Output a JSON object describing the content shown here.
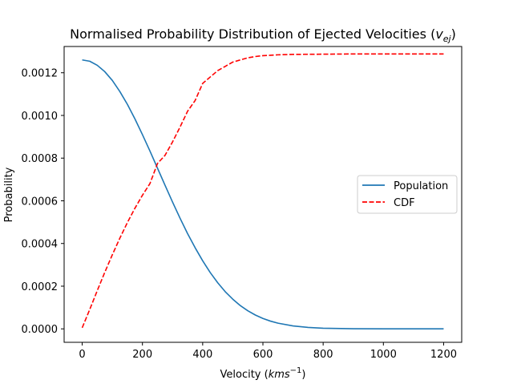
{
  "chart_data": {
    "type": "line",
    "title": "Normalised Probability Distribution of Ejected Velocities (",
    "title_math": "v",
    "title_math_sub": "ej",
    "title_close": ")",
    "xlabel": "Velocity (",
    "xlabel_math": "kms",
    "xlabel_math_sup": "−1",
    "xlabel_close": ")",
    "ylabel": "Probability",
    "xlim": [
      -60,
      1260
    ],
    "ylim": [
      -6.3e-05,
      0.001323
    ],
    "xticks": [
      0,
      200,
      400,
      600,
      800,
      1000,
      1200
    ],
    "xtick_labels": [
      "0",
      "200",
      "400",
      "600",
      "800",
      "1000",
      "1200"
    ],
    "yticks": [
      0,
      0.0002,
      0.0004,
      0.0006,
      0.0008,
      0.001,
      0.0012
    ],
    "ytick_labels": [
      "0.0000",
      "0.0002",
      "0.0004",
      "0.0006",
      "0.0008",
      "0.0010",
      "0.0012"
    ],
    "grid": false,
    "legend_position": "center-right",
    "series": [
      {
        "name": "Population",
        "color": "#1f77b4",
        "style": "solid",
        "x": [
          0,
          25,
          50,
          75,
          100,
          125,
          150,
          175,
          200,
          225,
          250,
          275,
          300,
          325,
          350,
          375,
          400,
          425,
          450,
          475,
          500,
          525,
          550,
          575,
          600,
          625,
          650,
          700,
          750,
          800,
          900,
          1000,
          1100,
          1200
        ],
        "y": [
          0.00126,
          0.001254,
          0.001235,
          0.001205,
          0.001164,
          0.001112,
          0.001052,
          0.000984,
          0.00091,
          0.000833,
          0.000753,
          0.000673,
          0.000594,
          0.000518,
          0.000446,
          0.00038,
          0.000319,
          0.000264,
          0.000216,
          0.000174,
          0.000139,
          0.000109,
          8.46e-05,
          6.47e-05,
          4.88e-05,
          3.63e-05,
          2.66e-05,
          1.37e-05,
          6.7e-06,
          3.1e-06,
          6e-07,
          1e-07,
          0,
          0
        ]
      },
      {
        "name": "CDF",
        "color": "#ff0000",
        "style": "dashed",
        "x": [
          0,
          25,
          50,
          75,
          100,
          125,
          150,
          175,
          200,
          225,
          250,
          275,
          300,
          325,
          350,
          375,
          400,
          425,
          450,
          475,
          500,
          525,
          550,
          575,
          600,
          650,
          700,
          800,
          900,
          1000,
          1100,
          1200
        ],
        "y": [
          5.1e-06,
          9.07e-05,
          0.000179,
          0.000265,
          0.000347,
          0.000425,
          0.000498,
          0.000565,
          0.000626,
          0.000681,
          0.000775,
          0.000813,
          0.000876,
          0.000946,
          0.00102,
          0.00107,
          0.00115,
          0.00118,
          0.00121,
          0.00123,
          0.00125,
          0.00126,
          0.00127,
          0.001276,
          0.00128,
          0.001284,
          0.001286,
          0.001287,
          0.001288,
          0.001288,
          0.001288,
          0.001288
        ]
      }
    ]
  }
}
